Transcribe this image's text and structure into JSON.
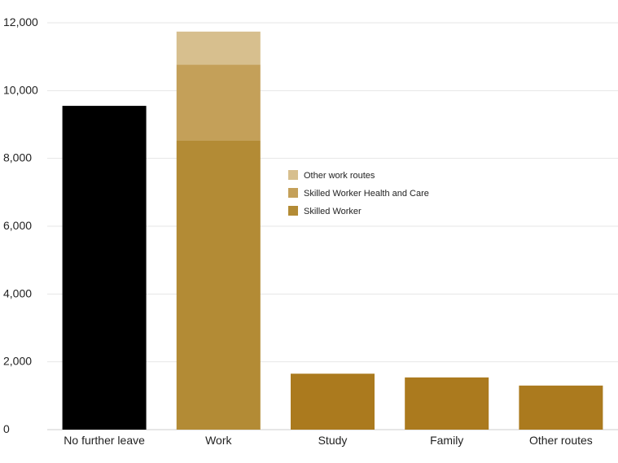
{
  "chart_data": {
    "type": "bar",
    "stacked": true,
    "categories": [
      "No further leave",
      "Work",
      "Study",
      "Family",
      "Other routes"
    ],
    "ylim": [
      0,
      12000
    ],
    "yticks": [
      0,
      2000,
      4000,
      6000,
      8000,
      10000,
      12000
    ],
    "ytick_labels": [
      "0",
      "2,000",
      "4,000",
      "6,000",
      "8,000",
      "10,000",
      "12,000"
    ],
    "grid": true,
    "legend_placement": "center",
    "single_bars": [
      {
        "category": "No further leave",
        "value": 9550,
        "color": "#000000"
      },
      {
        "category": "Study",
        "value": 1650,
        "color": "#ab7a1e"
      },
      {
        "category": "Family",
        "value": 1540,
        "color": "#ab7a1e"
      },
      {
        "category": "Other routes",
        "value": 1300,
        "color": "#ab7a1e"
      }
    ],
    "series": [
      {
        "name": "Skilled Worker",
        "category": "Work",
        "value": 8520,
        "color": "#b38b35"
      },
      {
        "name": "Skilled Worker Health and Care",
        "category": "Work",
        "value": 2250,
        "color": "#c4a059"
      },
      {
        "name": "Other work routes",
        "category": "Work",
        "value": 970,
        "color": "#d7bf8e"
      }
    ],
    "legend": [
      {
        "label": "Other work routes",
        "color": "#d7bf8e"
      },
      {
        "label": "Skilled Worker Health and Care",
        "color": "#c4a059"
      },
      {
        "label": "Skilled Worker",
        "color": "#b38b35"
      }
    ]
  }
}
